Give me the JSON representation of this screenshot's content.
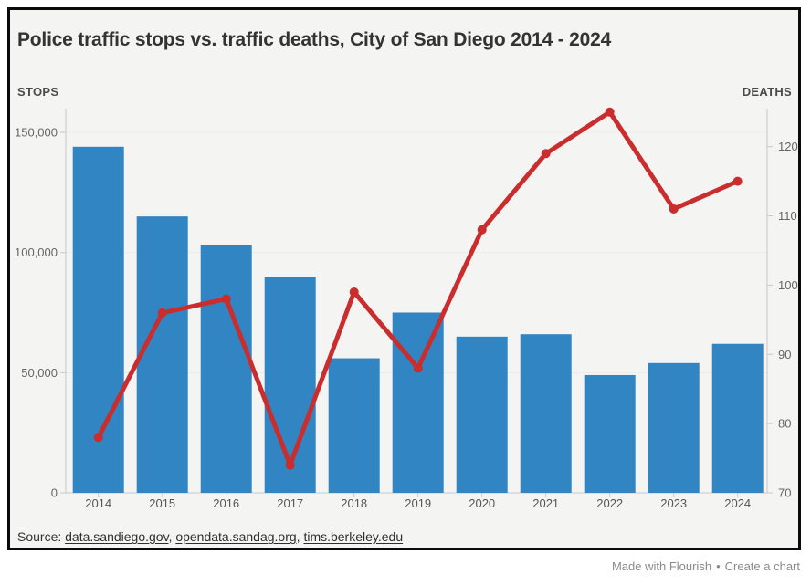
{
  "header": {
    "title": "Police traffic stops vs. traffic deaths, City of San Diego 2014 - 2024"
  },
  "axis_captions": {
    "left": "STOPS",
    "right": "DEATHS"
  },
  "chart_data": {
    "type": "bar+line (dual axis)",
    "title": "Police traffic stops vs. traffic deaths, City of San Diego 2014 - 2024",
    "categories": [
      "2014",
      "2015",
      "2016",
      "2017",
      "2018",
      "2019",
      "2020",
      "2021",
      "2022",
      "2023",
      "2024"
    ],
    "series": [
      {
        "name": "Stops",
        "type": "bar",
        "axis": "left",
        "color": "#3185c2",
        "values": [
          144000,
          115000,
          103000,
          90000,
          56000,
          75000,
          65000,
          66000,
          49000,
          54000,
          62000
        ]
      },
      {
        "name": "Deaths",
        "type": "line",
        "axis": "right",
        "color": "#c92d2d",
        "values": [
          78,
          96,
          98,
          74,
          99,
          88,
          108,
          119,
          125,
          111,
          115
        ]
      }
    ],
    "left_axis": {
      "title": "STOPS",
      "ticks": [
        0,
        50000,
        100000,
        150000
      ],
      "tick_labels": [
        "0",
        "50,000",
        "100,000",
        "150,000"
      ],
      "range": [
        0,
        155000
      ]
    },
    "right_axis": {
      "title": "DEATHS",
      "ticks": [
        70,
        80,
        90,
        100,
        110,
        120
      ],
      "tick_labels": [
        "70",
        "80",
        "90",
        "100",
        "110",
        "120"
      ],
      "range": [
        70,
        126
      ]
    },
    "grid": "horizontal light gridlines, left axis only",
    "legend": "none"
  },
  "source": {
    "prefix": "Source: ",
    "links": [
      "data.sandiego.gov",
      "opendata.sandag.org",
      "tims.berkeley.edu"
    ],
    "sep": ", "
  },
  "footer": {
    "made_with": "Made with Flourish",
    "bullet": "•",
    "create": "Create a chart"
  },
  "colors": {
    "bar": "#3185c2",
    "line": "#c92d2d",
    "card_background": "#f4f4f3",
    "border": "#0b0b0b",
    "axis_line": "#c9c9c9",
    "gridline": "#ebebeb"
  }
}
